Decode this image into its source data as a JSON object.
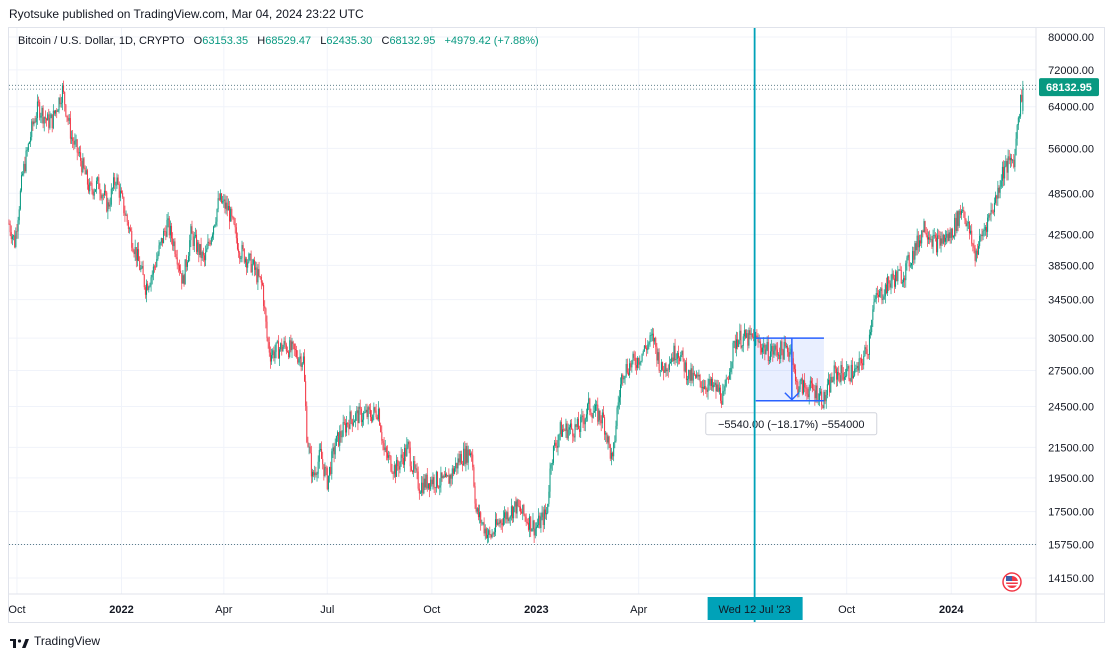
{
  "publisher": "Ryotsuke published on TradingView.com, Mar 04, 2024 23:22 UTC",
  "legend": {
    "symbol": "Bitcoin / U.S. Dollar, 1D, CRYPTO",
    "o_label": "O",
    "o": "63153.35",
    "h_label": "H",
    "h": "68529.47",
    "l_label": "L",
    "l": "62435.30",
    "c_label": "C",
    "c": "68132.95",
    "change": "+4979.42 (+7.88%)"
  },
  "footer": {
    "brand": "TradingView"
  },
  "colors": {
    "up": "#089981",
    "down": "#f23645",
    "crosshair": "#00a2b8",
    "measure": "#2962ff",
    "last_price_bg": "#089981"
  },
  "chart_data": {
    "type": "candlestick",
    "y_axis_scale": "log",
    "ylim": [
      13500,
      85000
    ],
    "y_ticks": [
      "80000.00",
      "72000.00",
      "64000.00",
      "56000.00",
      "48500.00",
      "42500.00",
      "38500.00",
      "34500.00",
      "30500.00",
      "27500.00",
      "24500.00",
      "21500.00",
      "19500.00",
      "17500.00",
      "15750.00",
      "14150.00"
    ],
    "x_range": [
      "2021-09-24",
      "2024-03-05"
    ],
    "x_ticks": [
      {
        "date": "2021-10-01",
        "label": "Oct",
        "bold": false
      },
      {
        "date": "2022-01-01",
        "label": "2022",
        "bold": true
      },
      {
        "date": "2022-04-01",
        "label": "Apr",
        "bold": false
      },
      {
        "date": "2022-07-01",
        "label": "Jul",
        "bold": false
      },
      {
        "date": "2022-10-01",
        "label": "Oct",
        "bold": false
      },
      {
        "date": "2023-01-01",
        "label": "2023",
        "bold": true
      },
      {
        "date": "2023-04-01",
        "label": "Apr",
        "bold": false
      },
      {
        "date": "2023-10-01",
        "label": "Oct",
        "bold": false
      },
      {
        "date": "2024-01-01",
        "label": "2024",
        "bold": true
      }
    ],
    "last_price": "68132.95",
    "dotted_levels": [
      68529.47,
      67700,
      15750
    ],
    "crosshair": {
      "date": "2023-07-12",
      "label": "Wed 12 Jul '23"
    },
    "measure": {
      "start": "2023-07-13",
      "end": "2023-09-11",
      "top_price": 30500,
      "bottom_price": 24960,
      "label": "−5540.00 (−18.17%) −554000"
    },
    "price_path": [
      [
        "2021-09-24",
        44000
      ],
      [
        "2021-09-29",
        41500
      ],
      [
        "2021-10-06",
        51500
      ],
      [
        "2021-10-15",
        60500
      ],
      [
        "2021-10-20",
        64000
      ],
      [
        "2021-10-28",
        61000
      ],
      [
        "2021-11-01",
        61300
      ],
      [
        "2021-11-10",
        67500
      ],
      [
        "2021-11-18",
        58000
      ],
      [
        "2021-11-26",
        54000
      ],
      [
        "2021-12-04",
        49000
      ],
      [
        "2021-12-12",
        50000
      ],
      [
        "2021-12-20",
        46500
      ],
      [
        "2021-12-27",
        51000
      ],
      [
        "2022-01-01",
        47500
      ],
      [
        "2022-01-10",
        42000
      ],
      [
        "2022-01-22",
        36000
      ],
      [
        "2022-01-28",
        37500
      ],
      [
        "2022-02-10",
        44000
      ],
      [
        "2022-02-18",
        40500
      ],
      [
        "2022-02-24",
        36500
      ],
      [
        "2022-03-03",
        42500
      ],
      [
        "2022-03-15",
        39000
      ],
      [
        "2022-03-28",
        47500
      ],
      [
        "2022-04-05",
        46000
      ],
      [
        "2022-04-15",
        40500
      ],
      [
        "2022-04-26",
        38500
      ],
      [
        "2022-05-05",
        36000
      ],
      [
        "2022-05-09",
        30500
      ],
      [
        "2022-05-12",
        29000
      ],
      [
        "2022-05-25",
        29800
      ],
      [
        "2022-06-10",
        28500
      ],
      [
        "2022-06-13",
        22500
      ],
      [
        "2022-06-18",
        19500
      ],
      [
        "2022-06-25",
        21000
      ],
      [
        "2022-07-01",
        19300
      ],
      [
        "2022-07-08",
        21700
      ],
      [
        "2022-07-20",
        23500
      ],
      [
        "2022-07-28",
        23800
      ],
      [
        "2022-08-10",
        23900
      ],
      [
        "2022-08-15",
        24300
      ],
      [
        "2022-08-20",
        21200
      ],
      [
        "2022-08-30",
        20000
      ],
      [
        "2022-09-10",
        21500
      ],
      [
        "2022-09-14",
        20200
      ],
      [
        "2022-09-20",
        19000
      ],
      [
        "2022-10-01",
        19400
      ],
      [
        "2022-10-14",
        19200
      ],
      [
        "2022-10-26",
        20800
      ],
      [
        "2022-11-05",
        21300
      ],
      [
        "2022-11-09",
        17500
      ],
      [
        "2022-11-21",
        16100
      ],
      [
        "2022-12-01",
        17100
      ],
      [
        "2022-12-14",
        17800
      ],
      [
        "2022-12-31",
        16600
      ],
      [
        "2023-01-10",
        17400
      ],
      [
        "2023-01-14",
        20800
      ],
      [
        "2023-01-22",
        22700
      ],
      [
        "2023-02-08",
        22900
      ],
      [
        "2023-02-16",
        24500
      ],
      [
        "2023-03-01",
        23500
      ],
      [
        "2023-03-09",
        20400
      ],
      [
        "2023-03-13",
        24200
      ],
      [
        "2023-03-18",
        27500
      ],
      [
        "2023-03-31",
        28500
      ],
      [
        "2023-04-11",
        30200
      ],
      [
        "2023-04-14",
        30500
      ],
      [
        "2023-04-21",
        27500
      ],
      [
        "2023-05-05",
        29500
      ],
      [
        "2023-05-15",
        27000
      ],
      [
        "2023-06-10",
        25800
      ],
      [
        "2023-06-15",
        25100
      ],
      [
        "2023-06-21",
        28500
      ],
      [
        "2023-06-26",
        30500
      ],
      [
        "2023-07-12",
        30400
      ],
      [
        "2023-07-24",
        29200
      ],
      [
        "2023-08-14",
        29400
      ],
      [
        "2023-08-17",
        26300
      ],
      [
        "2023-09-05",
        25700
      ],
      [
        "2023-09-11",
        25000
      ],
      [
        "2023-09-20",
        27200
      ],
      [
        "2023-10-10",
        27400
      ],
      [
        "2023-10-20",
        29700
      ],
      [
        "2023-10-24",
        34000
      ],
      [
        "2023-11-10",
        36800
      ],
      [
        "2023-11-20",
        37500
      ],
      [
        "2023-12-04",
        41900
      ],
      [
        "2023-12-08",
        43900
      ],
      [
        "2023-12-18",
        41300
      ],
      [
        "2023-12-31",
        42300
      ],
      [
        "2024-01-11",
        46500
      ],
      [
        "2024-01-22",
        39800
      ],
      [
        "2024-01-30",
        43300
      ],
      [
        "2024-02-09",
        47500
      ],
      [
        "2024-02-15",
        52000
      ],
      [
        "2024-02-26",
        54500
      ],
      [
        "2024-02-28",
        61000
      ],
      [
        "2024-03-04",
        68130
      ]
    ]
  }
}
